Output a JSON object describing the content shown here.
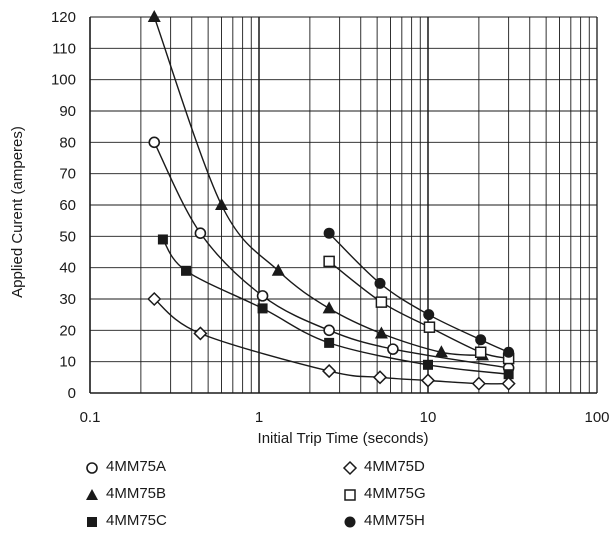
{
  "chart_data": {
    "type": "scatter",
    "xscale": "log",
    "xlim": [
      0.1,
      100
    ],
    "ylim": [
      0,
      120
    ],
    "xlabel": "Initial Trip Time (seconds)",
    "ylabel": "Applied Curent (amperes)",
    "xticks": [
      "0.1",
      "1",
      "10",
      "100"
    ],
    "yticks": [
      "0",
      "10",
      "20",
      "30",
      "40",
      "50",
      "60",
      "70",
      "80",
      "90",
      "100",
      "110",
      "120"
    ],
    "grid": true,
    "legend_position": "bottom",
    "series": [
      {
        "name": "4MM75A",
        "marker": "circle-open",
        "x": [
          0.24,
          0.45,
          1.05,
          2.6,
          6.2,
          30
        ],
        "y": [
          80,
          51,
          31,
          20,
          14,
          8
        ]
      },
      {
        "name": "4MM75B",
        "marker": "triangle-filled",
        "x": [
          0.24,
          0.6,
          1.3,
          2.6,
          5.3,
          12,
          21
        ],
        "y": [
          120,
          60,
          39,
          27,
          19,
          13,
          12
        ]
      },
      {
        "name": "4MM75C",
        "marker": "square-filled",
        "x": [
          0.27,
          0.37,
          1.05,
          2.6,
          10,
          30
        ],
        "y": [
          49,
          39,
          27,
          16,
          9,
          6
        ]
      },
      {
        "name": "4MM75D",
        "marker": "diamond-open",
        "x": [
          0.24,
          0.45,
          2.6,
          5.2,
          10,
          20,
          30
        ],
        "y": [
          30,
          19,
          7,
          5,
          4,
          3,
          3
        ]
      },
      {
        "name": "4MM75G",
        "marker": "square-open",
        "x": [
          2.6,
          5.3,
          10.2,
          20.5,
          30
        ],
        "y": [
          42,
          29,
          21,
          13,
          11
        ]
      },
      {
        "name": "4MM75H",
        "marker": "circle-filled",
        "x": [
          2.6,
          5.2,
          10.1,
          20.5,
          30
        ],
        "y": [
          51,
          35,
          25,
          17,
          13
        ]
      }
    ]
  }
}
